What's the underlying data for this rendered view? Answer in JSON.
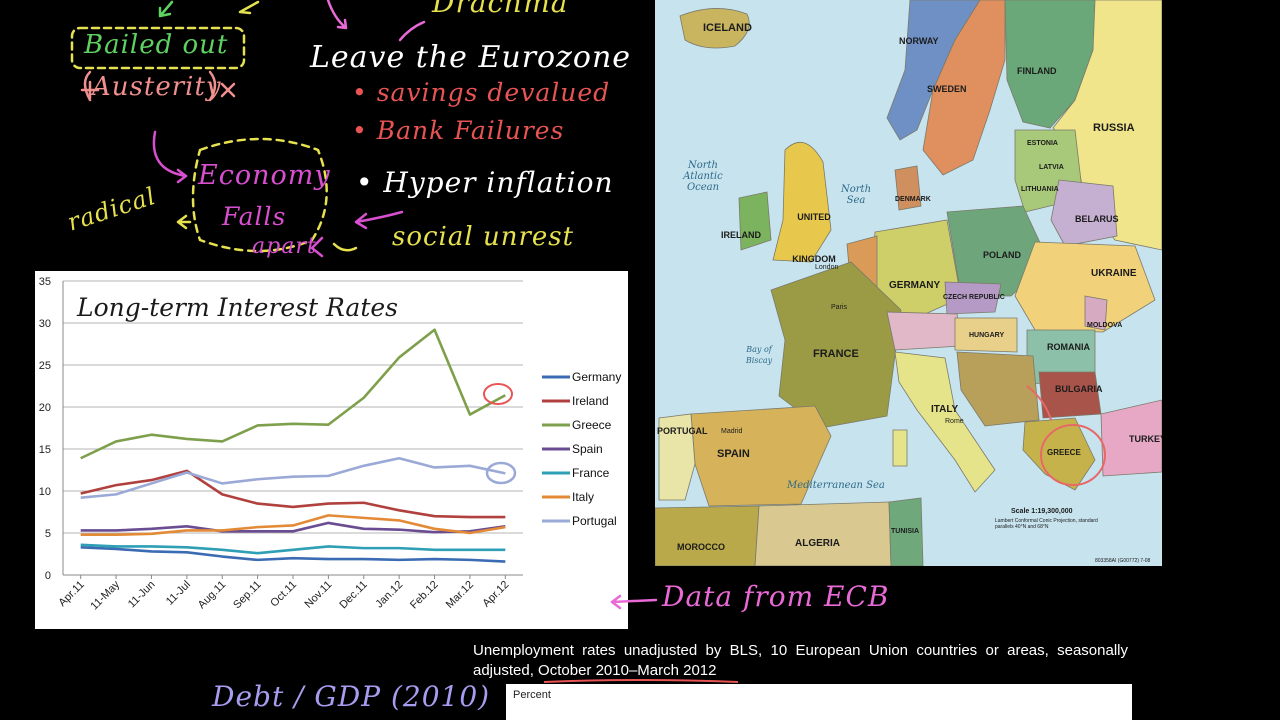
{
  "notes": {
    "drachma": "Drachma",
    "leave_eurozone": "Leave the Eurozone",
    "savings_devalued": "• savings devalued",
    "bank_failures": "• Bank Failures",
    "hyper_inflation": "• Hyper inflation",
    "social_unrest": "social unrest",
    "bailed_out": "Bailed out",
    "austerity": "Austerity",
    "economy": "Economy",
    "falls": "Falls",
    "apart": "apart",
    "radical": "radical",
    "data_from_ecb": "Data from ECB",
    "debt_gdp": "Debt / GDP (2010)"
  },
  "map": {
    "countries": [
      {
        "name": "ICELAND"
      },
      {
        "name": "NORWAY"
      },
      {
        "name": "SWEDEN"
      },
      {
        "name": "FINLAND"
      },
      {
        "name": "RUSSIA"
      },
      {
        "name": "ESTONIA"
      },
      {
        "name": "LATVIA"
      },
      {
        "name": "LITHUANIA"
      },
      {
        "name": "BELARUS"
      },
      {
        "name": "UNITED KINGDOM"
      },
      {
        "name": "IRELAND"
      },
      {
        "name": "DENMARK"
      },
      {
        "name": "POLAND"
      },
      {
        "name": "GERMANY"
      },
      {
        "name": "CZECH REPUBLIC"
      },
      {
        "name": "UKRAINE"
      },
      {
        "name": "FRANCE"
      },
      {
        "name": "MOLDOVA"
      },
      {
        "name": "ROMANIA"
      },
      {
        "name": "HUNGARY"
      },
      {
        "name": "BULGARIA"
      },
      {
        "name": "ITALY"
      },
      {
        "name": "PORTUGAL"
      },
      {
        "name": "SPAIN"
      },
      {
        "name": "GREECE"
      },
      {
        "name": "TURKEY"
      },
      {
        "name": "MOROCCO"
      },
      {
        "name": "ALGERIA"
      },
      {
        "name": "TUNISIA"
      }
    ],
    "seas": {
      "north_atlantic": "North Atlantic Ocean",
      "north_sea": "North Sea",
      "bay_of_biscay": "Bay of Biscay",
      "mediterranean": "Mediterranean Sea"
    },
    "cities": {
      "london": "London",
      "paris": "Paris",
      "madrid": "Madrid",
      "rome": "Rome"
    },
    "scale": "Scale 1:19,300,000",
    "projection": "Lambert Conformal Conic Projection, standard parallels 40°N and 68°N",
    "code": "803358AI (G00772) 7-08"
  },
  "unemployment": {
    "caption": "Unemployment rates unadjusted by BLS, 10 European Union countries or areas, seasonally adjusted, October 2010–March 2012",
    "box_label": "Percent"
  },
  "chart_data": {
    "type": "line",
    "title": "Long-term Interest Rates",
    "xlabel": "",
    "ylabel": "",
    "ylim": [
      0,
      35
    ],
    "yticks": [
      0,
      5,
      10,
      15,
      20,
      25,
      30,
      35
    ],
    "grid": true,
    "legend": "right",
    "categories": [
      "Apr.11",
      "11-May",
      "11-Jun",
      "11-Jul",
      "Aug.11",
      "Sep.11",
      "Oct.11",
      "Nov.11",
      "Dec.11",
      "Jan.12",
      "Feb.12",
      "Mar.12",
      "Apr.12"
    ],
    "series": [
      {
        "name": "Germany",
        "color": "#3b6bb3",
        "values": [
          3.3,
          3.1,
          2.8,
          2.7,
          2.2,
          1.8,
          2.0,
          1.9,
          1.9,
          1.8,
          1.9,
          1.8,
          1.6
        ]
      },
      {
        "name": "Ireland",
        "color": "#b0413e",
        "values": [
          9.7,
          10.7,
          11.3,
          12.4,
          9.6,
          8.5,
          8.1,
          8.5,
          8.6,
          7.7,
          7.0,
          6.9,
          6.9
        ]
      },
      {
        "name": "Greece",
        "color": "#7ea04c",
        "values": [
          13.9,
          15.9,
          16.7,
          16.2,
          15.9,
          17.8,
          18.0,
          17.9,
          21.1,
          25.9,
          29.2,
          19.1,
          21.4
        ]
      },
      {
        "name": "Spain",
        "color": "#6a4c93",
        "values": [
          5.3,
          5.3,
          5.5,
          5.8,
          5.2,
          5.2,
          5.2,
          6.2,
          5.5,
          5.4,
          5.1,
          5.2,
          5.8
        ]
      },
      {
        "name": "France",
        "color": "#2f9fb5",
        "values": [
          3.6,
          3.4,
          3.4,
          3.3,
          3.0,
          2.6,
          3.0,
          3.4,
          3.2,
          3.2,
          3.0,
          3.0,
          3.0
        ]
      },
      {
        "name": "Italy",
        "color": "#e38a37",
        "values": [
          4.8,
          4.8,
          4.9,
          5.3,
          5.3,
          5.7,
          5.9,
          7.1,
          6.8,
          6.5,
          5.5,
          5.0,
          5.7
        ]
      },
      {
        "name": "Portugal",
        "color": "#9aa9d6",
        "values": [
          9.2,
          9.6,
          10.9,
          12.2,
          10.9,
          11.4,
          11.7,
          11.8,
          13.0,
          13.9,
          12.8,
          13.0,
          12.1
        ]
      }
    ]
  }
}
